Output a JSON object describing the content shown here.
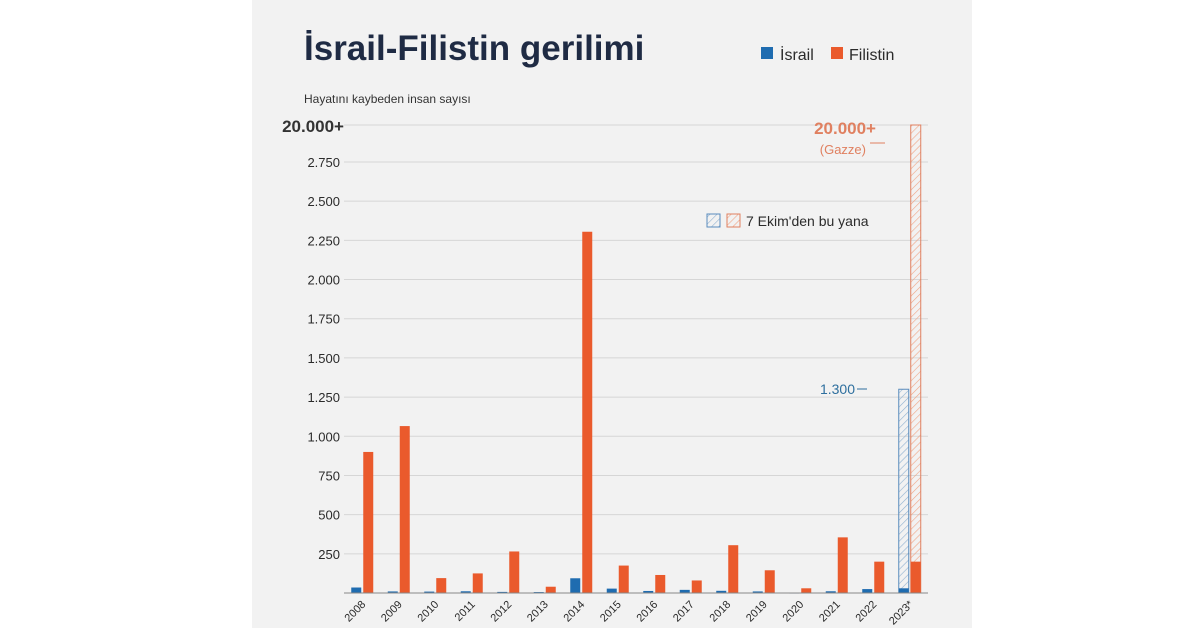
{
  "colors": {
    "israel": "#1f6cb0",
    "palestine": "#ea5a2c",
    "israel_hatch": "#8fb0d0",
    "palestine_hatch": "#f0a484",
    "grid": "#d6d6d6",
    "annotation_orange": "#e08060",
    "annotation_blue": "#2e6f9e"
  },
  "chart_data": {
    "type": "bar",
    "title": "İsrail-Filistin gerilimi",
    "ylabel": "Hayatını kaybeden insan sayısı",
    "categories": [
      "2008",
      "2009",
      "2010",
      "2011",
      "2012",
      "2013",
      "2014",
      "2015",
      "2016",
      "2017",
      "2018",
      "2019",
      "2020",
      "2021",
      "2022",
      "2023*"
    ],
    "series": [
      {
        "name": "İsrail",
        "color_key": "israel",
        "values": [
          35,
          10,
          9,
          11,
          7,
          6,
          94,
          28,
          13,
          20,
          14,
          10,
          3,
          11,
          25,
          30
        ]
      },
      {
        "name": "Filistin",
        "color_key": "palestine",
        "values": [
          900,
          1065,
          95,
          125,
          265,
          40,
          2305,
          175,
          115,
          80,
          305,
          145,
          30,
          355,
          200,
          200
        ]
      }
    ],
    "ylim": [
      0,
      2750
    ],
    "y_ticks": [
      "250",
      "500",
      "750",
      "1.000",
      "1.250",
      "1.500",
      "1.750",
      "2.000",
      "2.250",
      "2.500",
      "2.750"
    ],
    "y_break_label": "20.000+",
    "since_oct7": {
      "legend_label": "7 Ekim'den bu yana",
      "israel_value_label": "1.300",
      "israel_value": 1300,
      "palestine_value_label": "20.000+",
      "palestine_sub_label": "(Gazze)"
    },
    "legend_position": "top-right",
    "grid": "horizontal"
  }
}
